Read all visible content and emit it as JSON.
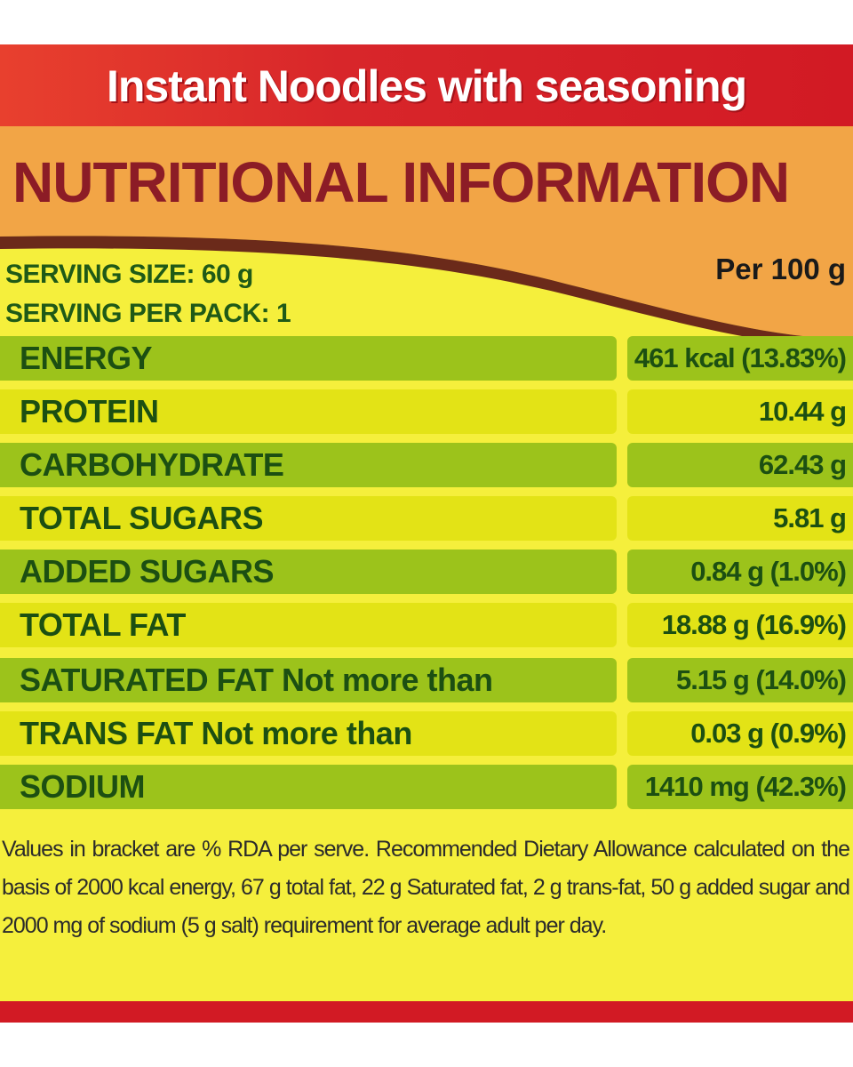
{
  "label": {
    "product_title": "Instant Noodles with seasoning",
    "heading": "NUTRITIONAL INFORMATION",
    "serving_size": "SERVING SIZE: 60 g",
    "serving_per_pack": "SERVING PER PACK: 1",
    "per_basis": "Per 100 g",
    "colors": {
      "red": "#d21a24",
      "orange": "#f2a546",
      "yellow": "#f5ef3c",
      "green_row": "#9cc31b",
      "yellow_row": "#e3e316",
      "heading_text": "#8c1c26",
      "row_text": "#1c4f12"
    },
    "nutrients": [
      {
        "name": "ENERGY",
        "value": "461 kcal (13.83%)"
      },
      {
        "name": "PROTEIN",
        "value": "10.44 g"
      },
      {
        "name": "CARBOHYDRATE",
        "value": "62.43 g"
      },
      {
        "name": "TOTAL SUGARS",
        "value": "5.81 g"
      },
      {
        "name": "ADDED SUGARS",
        "value": "0.84 g (1.0%)"
      },
      {
        "name": "TOTAL FAT",
        "value": "18.88 g (16.9%)"
      },
      {
        "name": "SATURATED FAT Not more than",
        "value": "5.15 g (14.0%)"
      },
      {
        "name": "TRANS FAT Not more than",
        "value": "0.03 g (0.9%)"
      },
      {
        "name": "SODIUM",
        "value": "1410 mg (42.3%)"
      }
    ],
    "footnote": "Values in bracket are % RDA per serve. Recommended Dietary Allowance calculated on the basis of 2000 kcal energy, 67 g total fat, 22 g Saturated fat, 2 g trans-fat, 50 g added sugar and 2000 mg of sodium (5 g salt) requirement for average adult per day."
  }
}
